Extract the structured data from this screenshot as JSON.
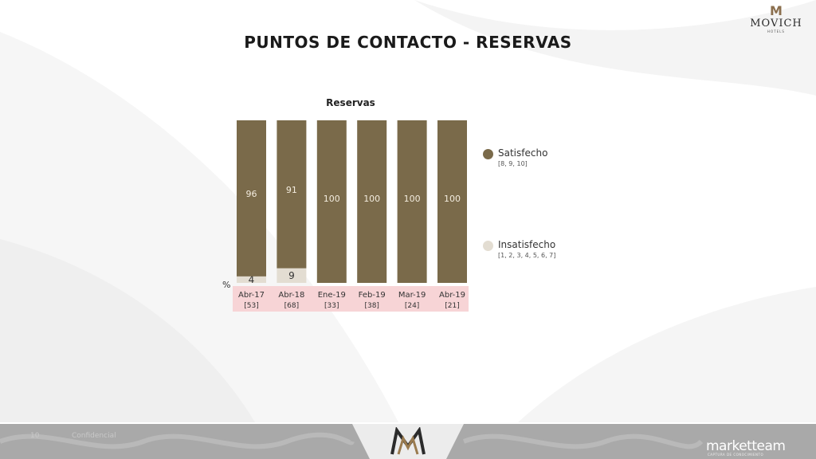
{
  "header": {
    "brand": "MOVICH",
    "brand_sub": "HOTELS",
    "title": "PUNTOS DE CONTACTO - RESERVAS"
  },
  "chart_data": {
    "type": "bar",
    "stacked": true,
    "title": "Reservas",
    "ylabel": "%",
    "ylim": [
      0,
      100
    ],
    "categories": [
      "Abr-17",
      "Abr-18",
      "Ene-19",
      "Feb-19",
      "Mar-19",
      "Abr-19"
    ],
    "category_bases": [
      "[53]",
      "[68]",
      "[33]",
      "[38]",
      "[24]",
      "[21]"
    ],
    "series": [
      {
        "name": "Insatisfecho",
        "values": [
          4,
          9,
          0,
          0,
          0,
          0
        ],
        "color": "#e3ddd2"
      },
      {
        "name": "Satisfecho",
        "values": [
          96,
          91,
          100,
          100,
          100,
          100
        ],
        "color": "#7a6a4a"
      }
    ],
    "data_labels": {
      "Insatisfecho": [
        "4",
        "9",
        "",
        "",
        "",
        ""
      ],
      "Satisfecho": [
        "96",
        "91",
        "100",
        "100",
        "100",
        "100"
      ]
    },
    "grid": false,
    "legend_position": "right"
  },
  "legend": {
    "items": [
      {
        "label": "Satisfecho",
        "detail": "[8, 9, 10]",
        "color": "#7a6a4a"
      },
      {
        "label": "Insatisfecho",
        "detail": "[1, 2, 3, 4, 5, 6, 7]",
        "color": "#e3ddd2"
      }
    ]
  },
  "footer": {
    "page_number": "10",
    "confidential": "Confidencial",
    "agency": "marketteam",
    "agency_sub": "CAPTURA DE CONOCIMIENTO"
  },
  "colors": {
    "axis_highlight": "#f7d4d6",
    "footer_bg": "#a9a9a9"
  }
}
